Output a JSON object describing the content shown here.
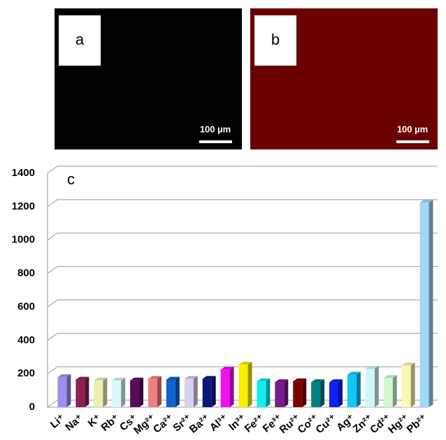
{
  "panels": [
    {
      "label": "a",
      "scale_bar": "100 µm",
      "color": "#000000"
    },
    {
      "label": "b",
      "scale_bar": "100 µm",
      "color": "#6a0000"
    }
  ],
  "chart_data": {
    "type": "bar",
    "annotation": "c",
    "categories": [
      "Li⁺",
      "Na⁺",
      "K⁺",
      "Rb⁺",
      "Cs⁺",
      "Mg²⁺",
      "Ca²⁺",
      "Sr²⁺",
      "Ba²⁺",
      "Al³⁺",
      "In³⁺",
      "Fe²⁺",
      "Fe³⁺",
      "Ru²⁺",
      "Co²⁺",
      "Cu²⁺",
      "Ag⁺",
      "Zn²⁺",
      "Cd²⁺",
      "Hg²⁺",
      "Pb²⁺"
    ],
    "values": [
      180,
      165,
      160,
      160,
      160,
      170,
      165,
      170,
      170,
      225,
      255,
      155,
      150,
      155,
      150,
      150,
      195,
      230,
      175,
      250,
      1225
    ],
    "colors": [
      "#9d8ff0",
      "#8b2252",
      "#eeeeb0",
      "#d8f8f8",
      "#5a0a5a",
      "#f08080",
      "#1060d0",
      "#d8d0f0",
      "#081878",
      "#f010f0",
      "#f8f000",
      "#10f0f0",
      "#7a1a8a",
      "#800000",
      "#008080",
      "#1020f0",
      "#10c8f8",
      "#d0f8f8",
      "#d0f8d0",
      "#f8f8b0",
      "#a0d8f8"
    ],
    "ylim": [
      0,
      1400
    ],
    "yticks": [
      0,
      200,
      400,
      600,
      800,
      1000,
      1200,
      1400
    ],
    "grid": true
  }
}
